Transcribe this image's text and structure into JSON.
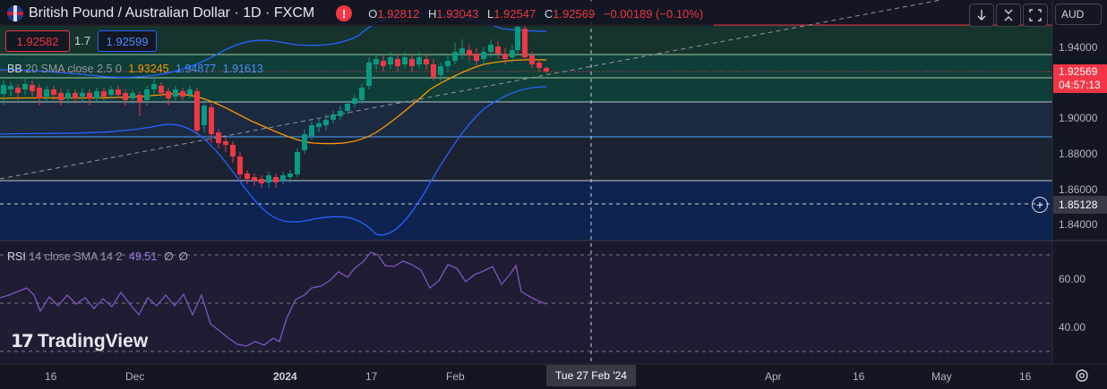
{
  "header": {
    "symbol_title": "British Pound / Australian Dollar · 1D · FXCM",
    "ohlc": [
      {
        "key": "O",
        "value": "1.92812"
      },
      {
        "key": "H",
        "value": "1.93043"
      },
      {
        "key": "L",
        "value": "1.92547"
      },
      {
        "key": "C",
        "value": "1.92569"
      }
    ],
    "change": "−0.00189 (−0.10%)",
    "currency": "AUD"
  },
  "trade": {
    "sell_price": "1.92582",
    "spread": "1.7",
    "buy_price": "1.92599"
  },
  "bb_indicator": {
    "name": "BB",
    "params": "20 SMA close 2.5 0",
    "basis": "1.93245",
    "upper": "1.94877",
    "lower": "1.91613"
  },
  "rsi_indicator": {
    "name": "RSI",
    "params": "14 close SMA 14 2",
    "value": "49.51",
    "v2": "∅",
    "v3": "∅"
  },
  "price_axis": {
    "labels": [
      "1.94000",
      "1.90000",
      "1.88000",
      "1.86000",
      "1.84000"
    ],
    "last_price": "1.92569",
    "countdown": "04:57:13",
    "crosshair_price": "1.85128"
  },
  "rsi_axis": {
    "labels": [
      "60.00",
      "40.00"
    ]
  },
  "time_axis": {
    "labels": [
      "16",
      "Dec",
      "2024",
      "17",
      "Feb",
      "Apr",
      "16",
      "May",
      "16"
    ],
    "crosshair_date": "Tue 27 Feb '24"
  },
  "watermark": "TradingView",
  "colors": {
    "background": "#131722",
    "up_candle": "#089981",
    "down_candle": "#f23645",
    "bb_band": "#2962ff",
    "bb_basis": "#ff9800",
    "rsi_line": "#7e57c2"
  },
  "icons": [
    "flag-icon",
    "alert-icon",
    "arrow-down-icon",
    "collapse-icon",
    "fullscreen-icon",
    "crosshair-plus-icon",
    "settings-gear-icon"
  ]
}
